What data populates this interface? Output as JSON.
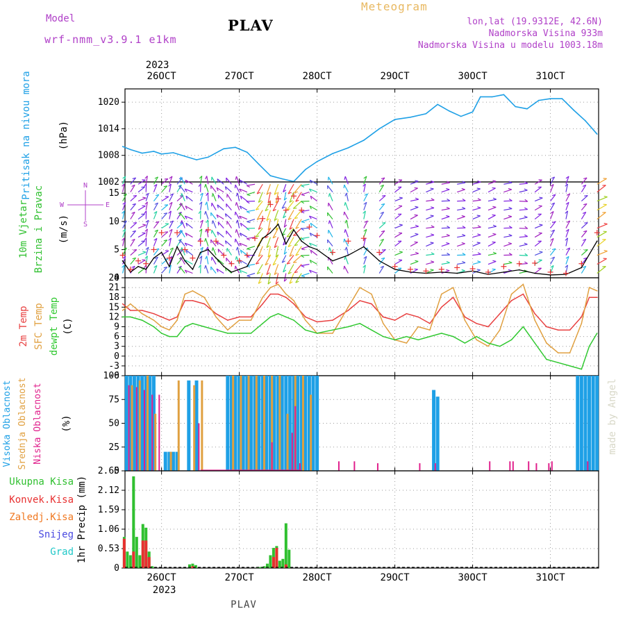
{
  "header": {
    "model_label": "Model",
    "model_name": "wrf-nmm_v3.9.1 e1km",
    "station": "PLAV",
    "app_title": "Meteogram",
    "lonlat": "lon,lat (19.9312E, 42.6N)",
    "elevation": "Nadmorska Visina 933m",
    "model_elevation": "Nadmorska Visina u modelu 1003.18m",
    "footer": "PLAV",
    "watermark": "made by Angel",
    "year_top": "2023",
    "year_bottom": "2023"
  },
  "colors": {
    "pressure": "#1ea0e6",
    "temp2m": "#e84040",
    "sfc_temp": "#e0a040",
    "dewpt": "#30c830",
    "cloud_high": "#1ea0e6",
    "cloud_mid": "#e0a040",
    "cloud_low": "#e0208c",
    "precip_total": "#30c030",
    "precip_conv": "#e83030",
    "precip_frz": "#f07820",
    "snow": "#4848e0",
    "grad": "#20c8c8",
    "wind_speed": "#000000",
    "gust": "#e83030",
    "axis_label_purple": "#b040c8"
  },
  "chart_data": [
    {
      "type": "line",
      "name_labels": [
        "Pritisak na nivou mora",
        "(hPa)"
      ],
      "x_ticks": [
        "26OCT",
        "27OCT",
        "28OCT",
        "29OCT",
        "30OCT",
        "31OCT"
      ],
      "y_ticks": [
        1002,
        1008,
        1014,
        1020
      ],
      "ylim": [
        1002,
        1023
      ],
      "grid": true,
      "x": [
        25.5,
        25.6,
        25.75,
        25.9,
        26.0,
        26.15,
        26.3,
        26.45,
        26.6,
        26.8,
        26.95,
        27.1,
        27.25,
        27.4,
        27.55,
        27.7,
        27.85,
        28.0,
        28.2,
        28.4,
        28.6,
        28.8,
        29.0,
        29.2,
        29.4,
        29.55,
        29.7,
        29.85,
        30.0,
        30.1,
        30.25,
        30.4,
        30.55,
        30.7,
        30.85,
        31.0,
        31.15,
        31.3,
        31.45,
        31.6
      ],
      "series": [
        {
          "values": [
            1010,
            1009.3,
            1008.5,
            1008.9,
            1008.3,
            1008.6,
            1007.8,
            1007.0,
            1007.6,
            1009.5,
            1009.8,
            1008.7,
            1006.0,
            1003.4,
            1002.7,
            1002.1,
            1004.8,
            1006.6,
            1008.4,
            1009.7,
            1011.4,
            1014.0,
            1016.1,
            1016.6,
            1017.4,
            1019.5,
            1018.0,
            1016.8,
            1017.8,
            1021.2,
            1021.2,
            1021.7,
            1019.0,
            1018.5,
            1020.4,
            1020.8,
            1020.8,
            1018.2,
            1015.8,
            1012.8
          ]
        }
      ]
    },
    {
      "type": "line",
      "name_labels": [
        "10m Vjetar",
        "Brzina i Pravac",
        "(m/s)"
      ],
      "compass": [
        "N",
        "W",
        "E",
        "S"
      ],
      "y_ticks": [
        0,
        5,
        10,
        15
      ],
      "ylim": [
        0,
        17
      ],
      "grid": true,
      "x": [
        25.5,
        25.6,
        25.7,
        25.8,
        25.9,
        26.0,
        26.1,
        26.2,
        26.3,
        26.4,
        26.5,
        26.6,
        26.7,
        26.8,
        26.9,
        27.0,
        27.1,
        27.2,
        27.3,
        27.4,
        27.5,
        27.6,
        27.7,
        27.8,
        27.9,
        28.0,
        28.2,
        28.4,
        28.6,
        28.8,
        29.0,
        29.2,
        29.4,
        29.6,
        29.8,
        30.0,
        30.2,
        30.4,
        30.6,
        30.8,
        31.0,
        31.2,
        31.4,
        31.6
      ],
      "series": [
        {
          "name": "speed",
          "values": [
            3.0,
            1.0,
            2.0,
            1.5,
            3.5,
            4.5,
            2.0,
            5.5,
            3.0,
            1.5,
            4.5,
            5.0,
            3.5,
            2.0,
            1.0,
            1.5,
            2.0,
            4.5,
            7.0,
            8.0,
            9.5,
            6.0,
            8.5,
            6.5,
            5.5,
            5.0,
            3.0,
            4.0,
            5.5,
            3.0,
            1.5,
            1.0,
            0.8,
            1.0,
            0.8,
            1.2,
            0.6,
            1.0,
            1.4,
            0.8,
            0.5,
            0.6,
            1.8,
            6.5
          ]
        },
        {
          "name": "gust",
          "values": [
            4.0,
            1.5,
            3.0,
            2.5,
            5.0,
            8.0,
            3.5,
            8.0,
            5.0,
            3.5,
            6.5,
            8.5,
            6.5,
            4.0,
            2.5,
            3.0,
            4.0,
            7.0,
            10.5,
            13.0,
            14.0,
            12.0,
            14.5,
            12.0,
            9.0,
            7.5,
            4.5,
            6.5,
            7.0,
            4.5,
            2.0,
            1.5,
            1.2,
            1.5,
            1.8,
            1.6,
            1.0,
            2.0,
            2.5,
            2.6,
            1.0,
            0.8,
            2.5,
            8.0
          ]
        }
      ],
      "wind_dir_deg": [
        20,
        40,
        60,
        10,
        30,
        50,
        20,
        40,
        330,
        300,
        10,
        350,
        330,
        310,
        320,
        340,
        300,
        260,
        210,
        200,
        200,
        200,
        210,
        220,
        260,
        300,
        330,
        340,
        20,
        40,
        60,
        70,
        75,
        80,
        80,
        75,
        70,
        80,
        85,
        60,
        30,
        20,
        40,
        60
      ]
    },
    {
      "type": "line",
      "name_labels": [
        "2m Temp",
        "SFC Temp",
        "dewpt Temp",
        "(C)"
      ],
      "y_ticks": [
        -6,
        -3,
        0,
        3,
        6,
        9,
        12,
        15,
        18,
        21,
        24
      ],
      "ylim": [
        -6,
        24
      ],
      "grid": true,
      "x": [
        25.5,
        25.6,
        25.75,
        25.9,
        26.0,
        26.1,
        26.2,
        26.3,
        26.4,
        26.55,
        26.7,
        26.85,
        27.0,
        27.15,
        27.3,
        27.4,
        27.5,
        27.6,
        27.7,
        27.85,
        28.0,
        28.2,
        28.4,
        28.55,
        28.7,
        28.85,
        29.0,
        29.15,
        29.3,
        29.45,
        29.6,
        29.75,
        29.9,
        30.05,
        30.2,
        30.35,
        30.5,
        30.65,
        30.8,
        30.95,
        31.1,
        31.25,
        31.4,
        31.5,
        31.6
      ],
      "series": [
        {
          "name": "2m Temp",
          "values": [
            16,
            14,
            14,
            13,
            12,
            11,
            12,
            17,
            17,
            16,
            13,
            11,
            12,
            12,
            16,
            19,
            19,
            18,
            16,
            12,
            10.5,
            11,
            14,
            17,
            16,
            12,
            11,
            13,
            12,
            10,
            15,
            18,
            12,
            10,
            9,
            13,
            17,
            19,
            13,
            9,
            8,
            8,
            12,
            18,
            18
          ]
        },
        {
          "name": "SFC Temp",
          "values": [
            14,
            16,
            13,
            11,
            9,
            8,
            11,
            19,
            20,
            18,
            12,
            8,
            11,
            11,
            18,
            21,
            22,
            19,
            17,
            11,
            7,
            7,
            15,
            21,
            19,
            10,
            5,
            4,
            9,
            8,
            19,
            21,
            11,
            5,
            3,
            8,
            19,
            22,
            11,
            4,
            1,
            1,
            10,
            21,
            20
          ]
        },
        {
          "name": "dewpt Temp",
          "values": [
            12,
            12,
            11,
            9,
            7,
            6,
            6,
            9,
            10,
            9,
            8,
            7,
            7,
            7,
            10,
            12,
            13,
            12,
            11,
            8,
            7,
            8,
            9,
            10,
            8,
            6,
            5,
            6,
            5,
            6,
            7,
            6,
            4,
            6,
            4,
            3,
            5,
            9,
            4,
            -1,
            -2,
            -3,
            -4,
            3,
            7
          ]
        }
      ]
    },
    {
      "type": "bar",
      "name_labels": [
        "Visoka Oblacnost",
        "Srednja Oblacnost",
        "Niska Oblacnost",
        "(%)"
      ],
      "y_ticks": [
        0,
        25,
        50,
        75,
        100
      ],
      "ylim": [
        0,
        100
      ],
      "grid": true,
      "series": [
        {
          "name": "Visoka Oblacnost",
          "x": [
            25.55,
            25.6,
            25.65,
            25.7,
            25.75,
            25.8,
            25.85,
            25.9,
            26.05,
            26.1,
            26.15,
            26.2,
            26.35,
            26.45,
            26.85,
            26.9,
            26.95,
            27.0,
            27.05,
            27.1,
            27.15,
            27.2,
            27.25,
            27.3,
            27.35,
            27.4,
            27.45,
            27.5,
            27.55,
            27.6,
            27.65,
            27.7,
            27.75,
            27.8,
            27.85,
            27.9,
            27.95,
            28.0,
            29.5,
            29.55,
            31.35,
            31.4,
            31.45,
            31.5,
            31.55,
            31.6
          ],
          "values": [
            100,
            100,
            100,
            100,
            100,
            100,
            100,
            100,
            20,
            20,
            20,
            20,
            95,
            95,
            100,
            100,
            100,
            100,
            100,
            100,
            100,
            100,
            100,
            100,
            100,
            100,
            100,
            100,
            100,
            100,
            100,
            100,
            100,
            100,
            100,
            100,
            100,
            100,
            85,
            78,
            100,
            100,
            100,
            100,
            100,
            100
          ]
        },
        {
          "name": "Srednja Oblacnost",
          "x": [
            25.62,
            25.72,
            25.82,
            25.92,
            26.12,
            26.22,
            26.42,
            26.52,
            26.92,
            27.02,
            27.12,
            27.22,
            27.32,
            27.42,
            27.52,
            27.62,
            27.72,
            27.82,
            27.92
          ],
          "values": [
            90,
            95,
            100,
            60,
            20,
            95,
            90,
            95,
            100,
            100,
            100,
            100,
            100,
            100,
            100,
            60,
            100,
            100,
            80
          ]
        },
        {
          "name": "Niska Oblacnost",
          "x": [
            25.58,
            25.68,
            25.78,
            25.88,
            25.97,
            26.48,
            27.42,
            27.68,
            27.72,
            27.78,
            28.28,
            28.48,
            28.78,
            29.32,
            29.52,
            30.22,
            30.48,
            30.52,
            30.72,
            30.82,
            30.98,
            31.02,
            31.48
          ],
          "values": [
            90,
            88,
            85,
            80,
            80,
            50,
            30,
            40,
            68,
            8,
            10,
            10,
            8,
            8,
            8,
            10,
            10,
            10,
            10,
            8,
            8,
            10,
            10
          ]
        }
      ]
    },
    {
      "type": "bar",
      "name_labels": [
        "Ukupna Kisa",
        "Konvek.Kisa",
        "Zaledj.Kisa",
        "Snijeg",
        "Grad",
        "1hr Precip (mm)"
      ],
      "y_ticks": [
        0,
        0.53,
        1.06,
        1.59,
        2.12,
        2.65
      ],
      "ylim": [
        0,
        2.65
      ],
      "grid": true,
      "series": [
        {
          "name": "Ukupna Kisa",
          "x": [
            25.52,
            25.56,
            25.6,
            25.64,
            25.68,
            25.72,
            25.76,
            25.8,
            25.84,
            25.88,
            26.36,
            26.4,
            26.44,
            27.24,
            27.28,
            27.32,
            27.36,
            27.4,
            27.44,
            27.48,
            27.52,
            27.56,
            27.6,
            27.64
          ],
          "values": [
            0.85,
            0.45,
            0.35,
            2.5,
            0.85,
            0.35,
            1.2,
            1.1,
            0.45,
            0.05,
            0.1,
            0.12,
            0.08,
            0.03,
            0.03,
            0.05,
            0.12,
            0.35,
            0.55,
            0.6,
            0.2,
            0.25,
            1.22,
            0.5
          ]
        },
        {
          "name": "Konvek.Kisa",
          "x": [
            25.52,
            25.64,
            25.76,
            25.8,
            25.84,
            26.4,
            27.44,
            27.48,
            27.6
          ],
          "values": [
            0.8,
            0.45,
            0.75,
            0.75,
            0.3,
            0.05,
            0.3,
            0.55,
            0.1
          ]
        }
      ]
    }
  ]
}
